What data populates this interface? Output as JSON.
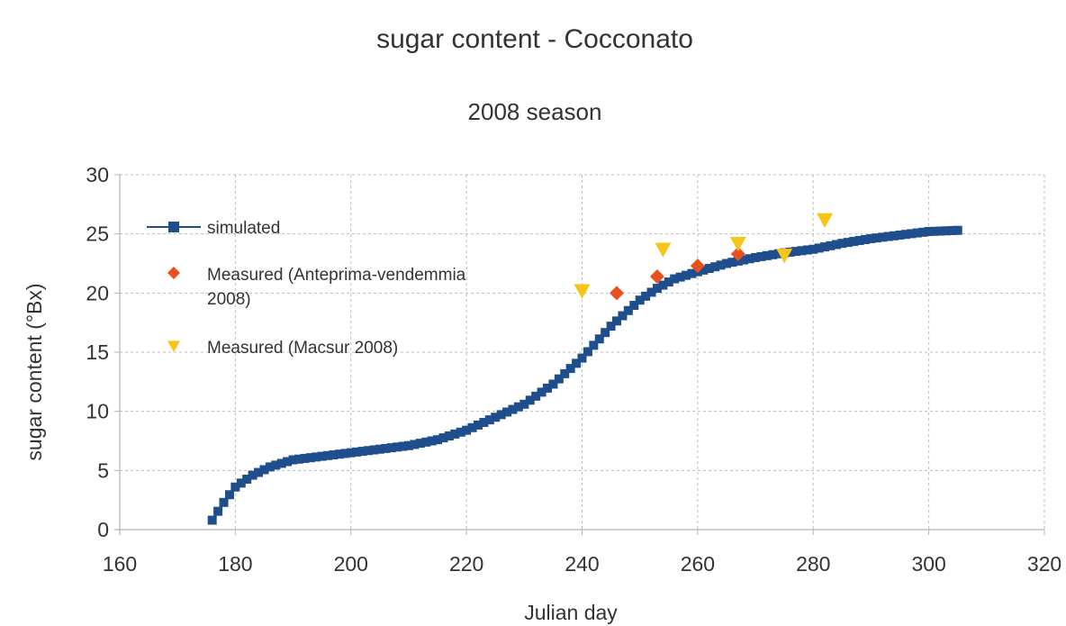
{
  "chart_data": {
    "type": "scatter",
    "title": "sugar content - Cocconato",
    "subtitle": "2008 season",
    "xlabel": "Julian day",
    "ylabel": "sugar content (°Bx)",
    "xlim": [
      160,
      320
    ],
    "ylim": [
      0,
      30
    ],
    "xticks": [
      160,
      180,
      200,
      220,
      240,
      260,
      280,
      300,
      320
    ],
    "yticks": [
      0,
      5,
      10,
      15,
      20,
      25,
      30
    ],
    "grid": true,
    "legend_position": "top-left",
    "series": [
      {
        "name": "simulated",
        "style": "line-with-square-markers",
        "color": "#1f4e8c",
        "curve_knots": [
          [
            176,
            0.8
          ],
          [
            178,
            2.3
          ],
          [
            180,
            3.6
          ],
          [
            183,
            4.6
          ],
          [
            186,
            5.3
          ],
          [
            190,
            5.9
          ],
          [
            195,
            6.2
          ],
          [
            200,
            6.5
          ],
          [
            205,
            6.8
          ],
          [
            210,
            7.1
          ],
          [
            215,
            7.6
          ],
          [
            220,
            8.4
          ],
          [
            225,
            9.5
          ],
          [
            230,
            10.6
          ],
          [
            235,
            12.3
          ],
          [
            240,
            14.5
          ],
          [
            245,
            17.2
          ],
          [
            250,
            19.4
          ],
          [
            253,
            20.4
          ],
          [
            256,
            21.2
          ],
          [
            260,
            21.8
          ],
          [
            265,
            22.5
          ],
          [
            270,
            23.0
          ],
          [
            275,
            23.4
          ],
          [
            280,
            23.7
          ],
          [
            285,
            24.2
          ],
          [
            290,
            24.6
          ],
          [
            295,
            24.9
          ],
          [
            300,
            25.2
          ],
          [
            305,
            25.3
          ]
        ],
        "x_start": 176,
        "x_end": 305
      },
      {
        "name": "Measured (Anteprima-vendemmia 2008)",
        "legend_lines": [
          "Measured (Anteprima-vendemmia",
          "2008)"
        ],
        "style": "diamond",
        "color": "#e8501e",
        "points": [
          [
            246,
            20.0
          ],
          [
            253,
            21.4
          ],
          [
            260,
            22.3
          ],
          [
            267,
            23.3
          ]
        ]
      },
      {
        "name": "Measured (Macsur 2008)",
        "style": "triangle-down",
        "color": "#f5c518",
        "points": [
          [
            240,
            20.2
          ],
          [
            254,
            23.7
          ],
          [
            267,
            24.2
          ],
          [
            275,
            23.2
          ],
          [
            282,
            26.2
          ]
        ]
      }
    ]
  }
}
